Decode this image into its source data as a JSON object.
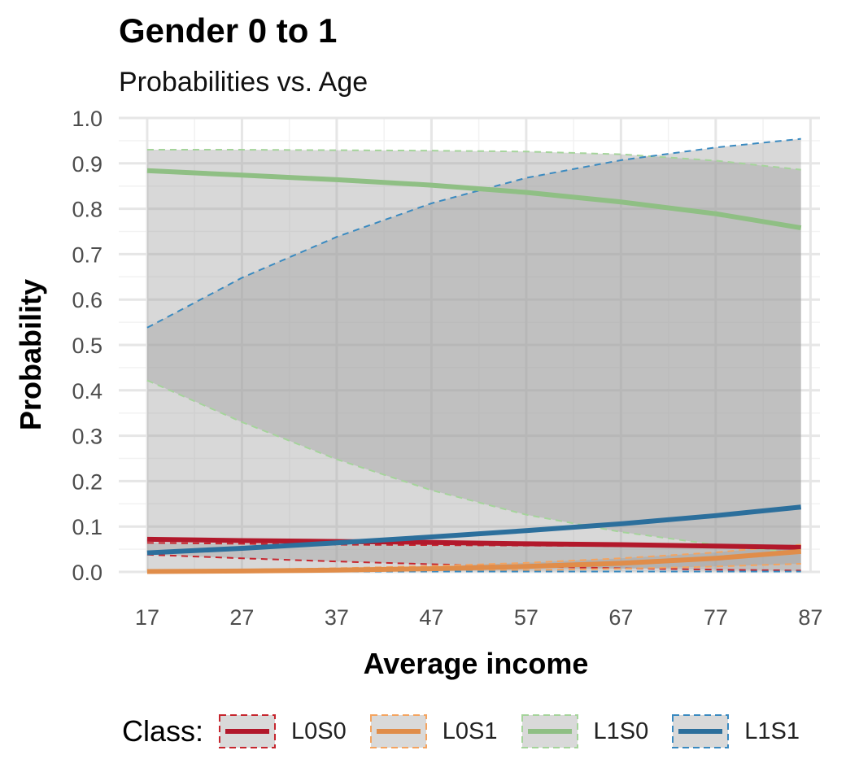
{
  "title": "Gender 0 to 1",
  "subtitle": "Probabilities vs. Age",
  "legend": {
    "title": "Class:",
    "items": [
      {
        "label": "L0S0",
        "color": "#b2182b"
      },
      {
        "label": "L0S1",
        "color": "#e08d4a"
      },
      {
        "label": "L1S0",
        "color": "#8fbf84"
      },
      {
        "label": "L1S1",
        "color": "#2c6f9c"
      }
    ]
  },
  "chart_data": {
    "type": "line",
    "xlabel": "Average income",
    "ylabel": "Probability",
    "xlim": [
      14,
      88
    ],
    "ylim": [
      0,
      1
    ],
    "xticks": [
      17,
      27,
      37,
      47,
      57,
      67,
      77,
      87
    ],
    "yticks": [
      0.0,
      0.1,
      0.2,
      0.3,
      0.4,
      0.5,
      0.6,
      0.7,
      0.8,
      0.9,
      1.0
    ],
    "ytick_labels": [
      "0.0",
      "0.1",
      "0.2",
      "0.3",
      "0.4",
      "0.5",
      "0.6",
      "0.7",
      "0.8",
      "0.9",
      "1.0"
    ],
    "grid": true,
    "legend_position": "bottom",
    "series": [
      {
        "name": "L0S0",
        "color": "#b2182b",
        "band_color": "#c6262e",
        "x": [
          17,
          27,
          37,
          47,
          57,
          67,
          77,
          86
        ],
        "y": [
          0.072,
          0.069,
          0.067,
          0.065,
          0.062,
          0.06,
          0.057,
          0.054
        ],
        "lower": [
          0.038,
          0.03,
          0.023,
          0.017,
          0.012,
          0.008,
          0.005,
          0.003
        ],
        "upper": [
          0.064,
          0.062,
          0.06,
          0.059,
          0.058,
          0.057,
          0.057,
          0.056
        ]
      },
      {
        "name": "L0S1",
        "color": "#e08d4a",
        "band_color": "#f4a460",
        "x": [
          17,
          27,
          37,
          47,
          57,
          67,
          77,
          86
        ],
        "y": [
          0.001,
          0.002,
          0.004,
          0.007,
          0.012,
          0.019,
          0.03,
          0.045
        ],
        "lower": [
          0.0,
          0.0,
          0.001,
          0.002,
          0.004,
          0.007,
          0.012,
          0.018
        ],
        "upper": [
          0.003,
          0.005,
          0.008,
          0.013,
          0.02,
          0.03,
          0.043,
          0.06
        ]
      },
      {
        "name": "L1S0",
        "color": "#8fbf84",
        "band_color": "#a5d49b",
        "x": [
          17,
          27,
          37,
          47,
          57,
          67,
          77,
          86
        ],
        "y": [
          0.884,
          0.874,
          0.864,
          0.852,
          0.836,
          0.815,
          0.789,
          0.758
        ],
        "lower": [
          0.422,
          0.33,
          0.248,
          0.18,
          0.126,
          0.088,
          0.06,
          0.042
        ],
        "upper": [
          0.93,
          0.93,
          0.929,
          0.928,
          0.926,
          0.92,
          0.906,
          0.886
        ]
      },
      {
        "name": "L1S1",
        "color": "#2c6f9c",
        "band_color": "#3a8ac0",
        "x": [
          17,
          27,
          37,
          47,
          57,
          67,
          77,
          86
        ],
        "y": [
          0.042,
          0.052,
          0.064,
          0.077,
          0.091,
          0.106,
          0.124,
          0.143
        ],
        "lower": [
          0.001,
          0.001,
          0.001,
          0.001,
          0.001,
          0.001,
          0.001,
          0.001
        ],
        "upper": [
          0.538,
          0.648,
          0.738,
          0.812,
          0.868,
          0.907,
          0.935,
          0.954
        ]
      }
    ]
  }
}
